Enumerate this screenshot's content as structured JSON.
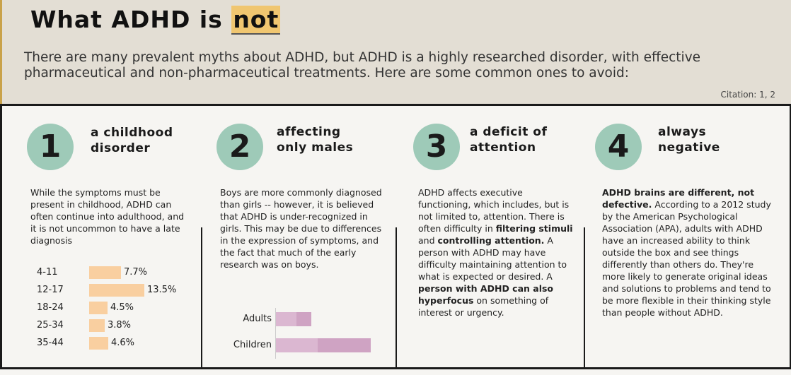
{
  "header": {
    "title_prefix": "What ADHD is ",
    "title_highlight": "not",
    "intro": "There are many prevalent myths about ADHD, but ADHD is a highly researched disorder, with effective pharmaceutical and non-pharmaceutical treatments. Here are some common ones to avoid:",
    "citation": "Citation: 1, 2"
  },
  "myths": [
    {
      "number": "1",
      "heading_line1": "a childhood",
      "heading_line2": "disorder",
      "text": "While the symptoms must be present in childhood, ADHD can often continue into adulthood, and it is not uncommon to have a late diagnosis"
    },
    {
      "number": "2",
      "heading_line1": "affecting",
      "heading_line2": "only males",
      "text": "Boys are more commonly diagnosed than girls -- however, it is believed that ADHD is under-recognized in girls. This may be due to differences in the expression of symptoms, and the fact that much of the early research was on boys."
    },
    {
      "number": "3",
      "heading_line1": "a deficit of",
      "heading_line2": "attention",
      "text_a": "ADHD affects executive functioning, which includes, but is not limited to, attention. There is often difficulty in ",
      "bold_a": "filtering stimuli",
      "text_b": " and ",
      "bold_b": "controlling attention.",
      "text_c": " A person with ADHD may have difficulty maintaining attention to what is expected or desired. A ",
      "bold_c": "person with ADHD can also hyperfocus",
      "text_d": " on something of interest or urgency."
    },
    {
      "number": "4",
      "heading_line1": "always",
      "heading_line2": "negative",
      "bold_a": "ADHD brains are different, not defective.",
      "text_a": " According to a 2012 study by the American Psychological Association (APA), adults with ADHD have an increased ability to think outside the box and see things differently than others do. They're more likely to generate original ideas and solutions to problems and tend to be more flexible in their thinking style than people without ADHD."
    }
  ],
  "chart_data": [
    {
      "type": "bar",
      "orientation": "horizontal",
      "categories": [
        "4-11",
        "12-17",
        "18-24",
        "25-34",
        "35-44"
      ],
      "values": [
        7.7,
        13.5,
        4.5,
        3.8,
        4.6
      ],
      "value_labels": [
        "7.7%",
        "13.5%",
        "4.5%",
        "3.8%",
        "4.6%"
      ],
      "title": "",
      "color": "#f9cfa0"
    },
    {
      "type": "bar",
      "orientation": "horizontal",
      "categories": [
        "Adults",
        "Children"
      ],
      "series": [
        {
          "values": [
            3.6,
            9.6
          ]
        },
        {
          "values": [
            2.1,
            4.2
          ]
        }
      ],
      "title": "",
      "color": "#cfa3c3"
    }
  ],
  "colors": {
    "header_bg": "#e3ded4",
    "highlight": "#f0c670",
    "circle": "#9ecab8",
    "age_bar": "#f9cfa0",
    "gender_bar": "#cfa3c3"
  }
}
